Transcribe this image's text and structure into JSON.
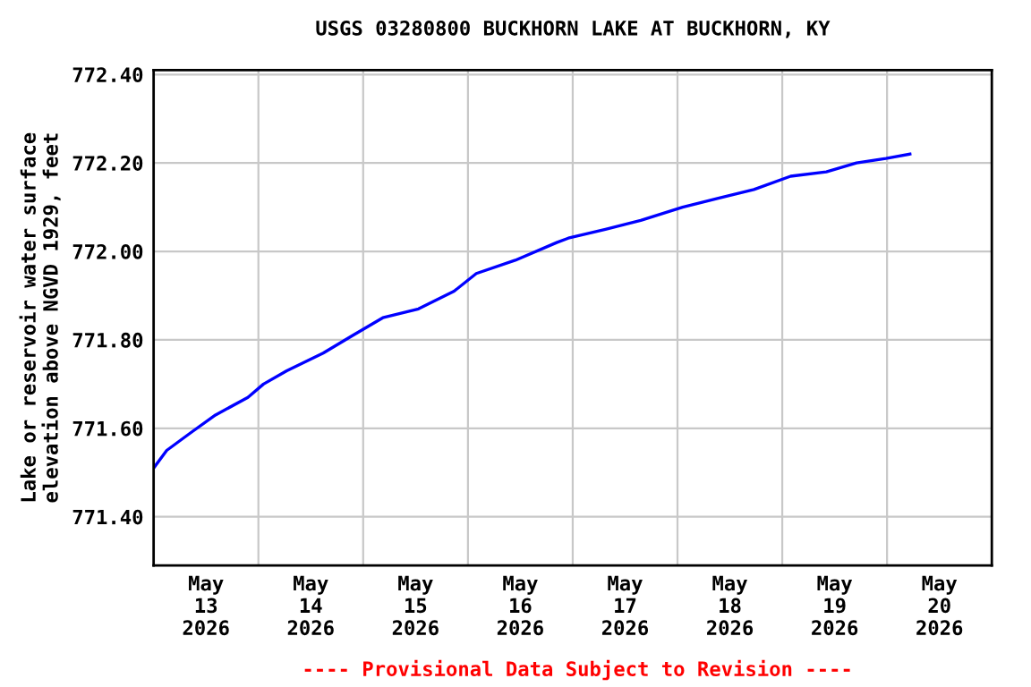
{
  "chart_data": {
    "type": "line",
    "title": "USGS 03280800 BUCKHORN LAKE AT BUCKHORN, KY",
    "ylabel": "Lake or reservoir water surface\nelevation above NGVD 1929, feet",
    "annotations": [
      "---- Provisional Data Subject to Revision ----"
    ],
    "x": [
      "2026-05-13T00:00",
      "2026-05-13T03:00",
      "2026-05-13T08:30",
      "2026-05-13T14:10",
      "2026-05-13T21:36",
      "2026-05-14T01:10",
      "2026-05-14T06:30",
      "2026-05-14T14:50",
      "2026-05-14T21:36",
      "2026-05-15T04:30",
      "2026-05-15T12:40",
      "2026-05-15T20:50",
      "2026-05-16T01:55",
      "2026-05-16T10:50",
      "2026-05-16T20:20",
      "2026-05-16T23:00",
      "2026-05-17T07:30",
      "2026-05-17T15:35",
      "2026-05-18T01:10",
      "2026-05-18T09:20",
      "2026-05-18T17:30",
      "2026-05-19T01:55",
      "2026-05-19T10:05",
      "2026-05-19T17:00",
      "2026-05-19T23:45",
      "2026-05-20T05:15"
    ],
    "series": [
      {
        "color": "#0000ff",
        "values": [
          771.51,
          771.55,
          771.59,
          771.63,
          771.67,
          771.7,
          771.73,
          771.77,
          771.81,
          771.85,
          771.87,
          771.91,
          771.95,
          771.98,
          772.02,
          772.03,
          772.05,
          772.07,
          772.1,
          772.12,
          772.14,
          772.17,
          772.18,
          772.2,
          772.21,
          772.22
        ]
      }
    ],
    "xlim": [
      "2026-05-13",
      "2026-05-21"
    ],
    "xticks": [
      {
        "value": "2026-05-13T12:00",
        "label": "May\n13\n2026"
      },
      {
        "value": "2026-05-14",
        "label": null
      },
      {
        "value": "2026-05-14T12:00",
        "label": "May\n14\n2026"
      },
      {
        "value": "2026-05-15",
        "label": null
      },
      {
        "value": "2026-05-15T12:00",
        "label": "May\n15\n2026"
      },
      {
        "value": "2026-05-16",
        "label": null
      },
      {
        "value": "2026-05-16T12:00",
        "label": "May\n16\n2026"
      },
      {
        "value": "2026-05-17",
        "label": null
      },
      {
        "value": "2026-05-17T12:00",
        "label": "May\n17\n2026"
      },
      {
        "value": "2026-05-18",
        "label": null
      },
      {
        "value": "2026-05-18T12:00",
        "label": "May\n18\n2026"
      },
      {
        "value": "2026-05-19",
        "label": null
      },
      {
        "value": "2026-05-19T12:00",
        "label": "May\n19\n2026"
      },
      {
        "value": "2026-05-20",
        "label": null
      },
      {
        "value": "2026-05-20T12:00",
        "label": "May\n20\n2026"
      }
    ],
    "ylim": [
      771.29,
      772.41
    ],
    "yticks": [
      {
        "value": 771.4,
        "label": "771.40"
      },
      {
        "value": 771.6,
        "label": "771.60"
      },
      {
        "value": 771.8,
        "label": "771.80"
      },
      {
        "value": 772.0,
        "label": "772.00"
      },
      {
        "value": 772.2,
        "label": "772.20"
      },
      {
        "value": 772.4,
        "label": "772.40"
      }
    ],
    "grid": true,
    "legend": false
  }
}
